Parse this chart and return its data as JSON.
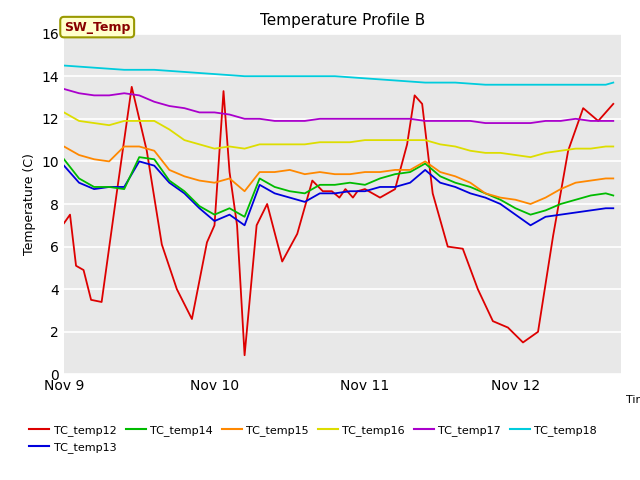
{
  "title": "Temperature Profile B",
  "xlabel": "Time",
  "ylabel": "Temperature (C)",
  "ylim": [
    0,
    16
  ],
  "yticks": [
    0,
    2,
    4,
    6,
    8,
    10,
    12,
    14,
    16
  ],
  "xtick_labels": [
    "Nov 9",
    "Nov 10",
    "Nov 11",
    "Nov 12"
  ],
  "bg_color": "#e8e8e8",
  "legend_label": "SW_Temp",
  "series_order": [
    "TC_temp12",
    "TC_temp13",
    "TC_temp14",
    "TC_temp15",
    "TC_temp16",
    "TC_temp17",
    "TC_temp18"
  ],
  "series": {
    "TC_temp12": {
      "color": "#dd0000",
      "points": [
        [
          0,
          7.1
        ],
        [
          0.04,
          7.5
        ],
        [
          0.08,
          5.1
        ],
        [
          0.13,
          4.9
        ],
        [
          0.18,
          3.5
        ],
        [
          0.25,
          3.4
        ],
        [
          0.35,
          8.5
        ],
        [
          0.45,
          13.5
        ],
        [
          0.55,
          10.5
        ],
        [
          0.65,
          6.1
        ],
        [
          0.75,
          4.0
        ],
        [
          0.85,
          2.6
        ],
        [
          0.95,
          6.2
        ],
        [
          1.0,
          7.0
        ],
        [
          1.06,
          13.3
        ],
        [
          1.1,
          9.5
        ],
        [
          1.15,
          7.0
        ],
        [
          1.2,
          0.9
        ],
        [
          1.28,
          7.0
        ],
        [
          1.35,
          8.0
        ],
        [
          1.45,
          5.3
        ],
        [
          1.55,
          6.6
        ],
        [
          1.65,
          9.1
        ],
        [
          1.72,
          8.6
        ],
        [
          1.78,
          8.6
        ],
        [
          1.83,
          8.3
        ],
        [
          1.87,
          8.7
        ],
        [
          1.92,
          8.3
        ],
        [
          1.95,
          8.6
        ],
        [
          2.0,
          8.7
        ],
        [
          2.1,
          8.3
        ],
        [
          2.2,
          8.7
        ],
        [
          2.28,
          10.8
        ],
        [
          2.33,
          13.1
        ],
        [
          2.38,
          12.7
        ],
        [
          2.45,
          8.5
        ],
        [
          2.55,
          6.0
        ],
        [
          2.65,
          5.9
        ],
        [
          2.75,
          4.0
        ],
        [
          2.85,
          2.5
        ],
        [
          2.95,
          2.2
        ],
        [
          3.05,
          1.5
        ],
        [
          3.15,
          2.0
        ],
        [
          3.25,
          6.5
        ],
        [
          3.35,
          10.5
        ],
        [
          3.45,
          12.5
        ],
        [
          3.55,
          11.9
        ],
        [
          3.65,
          12.7
        ]
      ]
    },
    "TC_temp13": {
      "color": "#0000dd",
      "points": [
        [
          0,
          9.8
        ],
        [
          0.1,
          9.0
        ],
        [
          0.2,
          8.7
        ],
        [
          0.3,
          8.8
        ],
        [
          0.4,
          8.8
        ],
        [
          0.5,
          10.0
        ],
        [
          0.6,
          9.8
        ],
        [
          0.7,
          9.0
        ],
        [
          0.8,
          8.5
        ],
        [
          0.9,
          7.8
        ],
        [
          1.0,
          7.2
        ],
        [
          1.1,
          7.5
        ],
        [
          1.2,
          7.0
        ],
        [
          1.3,
          8.9
        ],
        [
          1.4,
          8.5
        ],
        [
          1.5,
          8.3
        ],
        [
          1.6,
          8.1
        ],
        [
          1.7,
          8.5
        ],
        [
          1.8,
          8.5
        ],
        [
          1.9,
          8.6
        ],
        [
          2.0,
          8.6
        ],
        [
          2.1,
          8.8
        ],
        [
          2.2,
          8.8
        ],
        [
          2.3,
          9.0
        ],
        [
          2.4,
          9.6
        ],
        [
          2.5,
          9.0
        ],
        [
          2.6,
          8.8
        ],
        [
          2.7,
          8.5
        ],
        [
          2.8,
          8.3
        ],
        [
          2.9,
          8.0
        ],
        [
          3.0,
          7.5
        ],
        [
          3.1,
          7.0
        ],
        [
          3.2,
          7.4
        ],
        [
          3.3,
          7.5
        ],
        [
          3.4,
          7.6
        ],
        [
          3.5,
          7.7
        ],
        [
          3.6,
          7.8
        ],
        [
          3.65,
          7.8
        ]
      ]
    },
    "TC_temp14": {
      "color": "#00bb00",
      "points": [
        [
          0,
          10.1
        ],
        [
          0.1,
          9.2
        ],
        [
          0.2,
          8.8
        ],
        [
          0.3,
          8.8
        ],
        [
          0.4,
          8.7
        ],
        [
          0.5,
          10.2
        ],
        [
          0.6,
          10.1
        ],
        [
          0.7,
          9.1
        ],
        [
          0.8,
          8.6
        ],
        [
          0.9,
          7.9
        ],
        [
          1.0,
          7.5
        ],
        [
          1.1,
          7.8
        ],
        [
          1.2,
          7.4
        ],
        [
          1.3,
          9.2
        ],
        [
          1.4,
          8.8
        ],
        [
          1.5,
          8.6
        ],
        [
          1.6,
          8.5
        ],
        [
          1.7,
          8.9
        ],
        [
          1.8,
          8.9
        ],
        [
          1.9,
          9.0
        ],
        [
          2.0,
          8.9
        ],
        [
          2.1,
          9.2
        ],
        [
          2.2,
          9.4
        ],
        [
          2.3,
          9.5
        ],
        [
          2.4,
          9.9
        ],
        [
          2.5,
          9.3
        ],
        [
          2.6,
          9.0
        ],
        [
          2.7,
          8.8
        ],
        [
          2.8,
          8.5
        ],
        [
          2.9,
          8.2
        ],
        [
          3.0,
          7.8
        ],
        [
          3.1,
          7.5
        ],
        [
          3.2,
          7.7
        ],
        [
          3.3,
          8.0
        ],
        [
          3.4,
          8.2
        ],
        [
          3.5,
          8.4
        ],
        [
          3.6,
          8.5
        ],
        [
          3.65,
          8.4
        ]
      ]
    },
    "TC_temp15": {
      "color": "#ff8800",
      "points": [
        [
          0,
          10.7
        ],
        [
          0.1,
          10.3
        ],
        [
          0.2,
          10.1
        ],
        [
          0.3,
          10.0
        ],
        [
          0.4,
          10.7
        ],
        [
          0.5,
          10.7
        ],
        [
          0.6,
          10.5
        ],
        [
          0.7,
          9.6
        ],
        [
          0.8,
          9.3
        ],
        [
          0.9,
          9.1
        ],
        [
          1.0,
          9.0
        ],
        [
          1.1,
          9.2
        ],
        [
          1.2,
          8.6
        ],
        [
          1.3,
          9.5
        ],
        [
          1.4,
          9.5
        ],
        [
          1.5,
          9.6
        ],
        [
          1.6,
          9.4
        ],
        [
          1.7,
          9.5
        ],
        [
          1.8,
          9.4
        ],
        [
          1.9,
          9.4
        ],
        [
          2.0,
          9.5
        ],
        [
          2.1,
          9.5
        ],
        [
          2.2,
          9.6
        ],
        [
          2.3,
          9.6
        ],
        [
          2.4,
          10.0
        ],
        [
          2.5,
          9.5
        ],
        [
          2.6,
          9.3
        ],
        [
          2.7,
          9.0
        ],
        [
          2.8,
          8.5
        ],
        [
          2.9,
          8.3
        ],
        [
          3.0,
          8.2
        ],
        [
          3.1,
          8.0
        ],
        [
          3.2,
          8.3
        ],
        [
          3.3,
          8.7
        ],
        [
          3.4,
          9.0
        ],
        [
          3.5,
          9.1
        ],
        [
          3.6,
          9.2
        ],
        [
          3.65,
          9.2
        ]
      ]
    },
    "TC_temp16": {
      "color": "#dddd00",
      "points": [
        [
          0,
          12.3
        ],
        [
          0.1,
          11.9
        ],
        [
          0.2,
          11.8
        ],
        [
          0.3,
          11.7
        ],
        [
          0.4,
          11.9
        ],
        [
          0.5,
          11.9
        ],
        [
          0.6,
          11.9
        ],
        [
          0.7,
          11.5
        ],
        [
          0.8,
          11.0
        ],
        [
          0.9,
          10.8
        ],
        [
          1.0,
          10.6
        ],
        [
          1.1,
          10.7
        ],
        [
          1.2,
          10.6
        ],
        [
          1.3,
          10.8
        ],
        [
          1.4,
          10.8
        ],
        [
          1.5,
          10.8
        ],
        [
          1.6,
          10.8
        ],
        [
          1.7,
          10.9
        ],
        [
          1.8,
          10.9
        ],
        [
          1.9,
          10.9
        ],
        [
          2.0,
          11.0
        ],
        [
          2.1,
          11.0
        ],
        [
          2.2,
          11.0
        ],
        [
          2.3,
          11.0
        ],
        [
          2.4,
          11.0
        ],
        [
          2.5,
          10.8
        ],
        [
          2.6,
          10.7
        ],
        [
          2.7,
          10.5
        ],
        [
          2.8,
          10.4
        ],
        [
          2.9,
          10.4
        ],
        [
          3.0,
          10.3
        ],
        [
          3.1,
          10.2
        ],
        [
          3.2,
          10.4
        ],
        [
          3.3,
          10.5
        ],
        [
          3.4,
          10.6
        ],
        [
          3.5,
          10.6
        ],
        [
          3.6,
          10.7
        ],
        [
          3.65,
          10.7
        ]
      ]
    },
    "TC_temp17": {
      "color": "#aa00cc",
      "points": [
        [
          0,
          13.4
        ],
        [
          0.1,
          13.2
        ],
        [
          0.2,
          13.1
        ],
        [
          0.3,
          13.1
        ],
        [
          0.4,
          13.2
        ],
        [
          0.5,
          13.1
        ],
        [
          0.6,
          12.8
        ],
        [
          0.7,
          12.6
        ],
        [
          0.8,
          12.5
        ],
        [
          0.9,
          12.3
        ],
        [
          1.0,
          12.3
        ],
        [
          1.1,
          12.2
        ],
        [
          1.2,
          12.0
        ],
        [
          1.3,
          12.0
        ],
        [
          1.4,
          11.9
        ],
        [
          1.5,
          11.9
        ],
        [
          1.6,
          11.9
        ],
        [
          1.7,
          12.0
        ],
        [
          1.8,
          12.0
        ],
        [
          1.9,
          12.0
        ],
        [
          2.0,
          12.0
        ],
        [
          2.1,
          12.0
        ],
        [
          2.2,
          12.0
        ],
        [
          2.3,
          12.0
        ],
        [
          2.4,
          11.9
        ],
        [
          2.5,
          11.9
        ],
        [
          2.6,
          11.9
        ],
        [
          2.7,
          11.9
        ],
        [
          2.8,
          11.8
        ],
        [
          2.9,
          11.8
        ],
        [
          3.0,
          11.8
        ],
        [
          3.1,
          11.8
        ],
        [
          3.2,
          11.9
        ],
        [
          3.3,
          11.9
        ],
        [
          3.4,
          12.0
        ],
        [
          3.5,
          11.9
        ],
        [
          3.6,
          11.9
        ],
        [
          3.65,
          11.9
        ]
      ]
    },
    "TC_temp18": {
      "color": "#00ccdd",
      "points": [
        [
          0,
          14.5
        ],
        [
          0.2,
          14.4
        ],
        [
          0.4,
          14.3
        ],
        [
          0.6,
          14.3
        ],
        [
          0.8,
          14.2
        ],
        [
          1.0,
          14.1
        ],
        [
          1.2,
          14.0
        ],
        [
          1.4,
          14.0
        ],
        [
          1.6,
          14.0
        ],
        [
          1.8,
          14.0
        ],
        [
          2.0,
          13.9
        ],
        [
          2.2,
          13.8
        ],
        [
          2.4,
          13.7
        ],
        [
          2.6,
          13.7
        ],
        [
          2.8,
          13.6
        ],
        [
          3.0,
          13.6
        ],
        [
          3.2,
          13.6
        ],
        [
          3.4,
          13.6
        ],
        [
          3.6,
          13.6
        ],
        [
          3.65,
          13.7
        ]
      ]
    }
  }
}
